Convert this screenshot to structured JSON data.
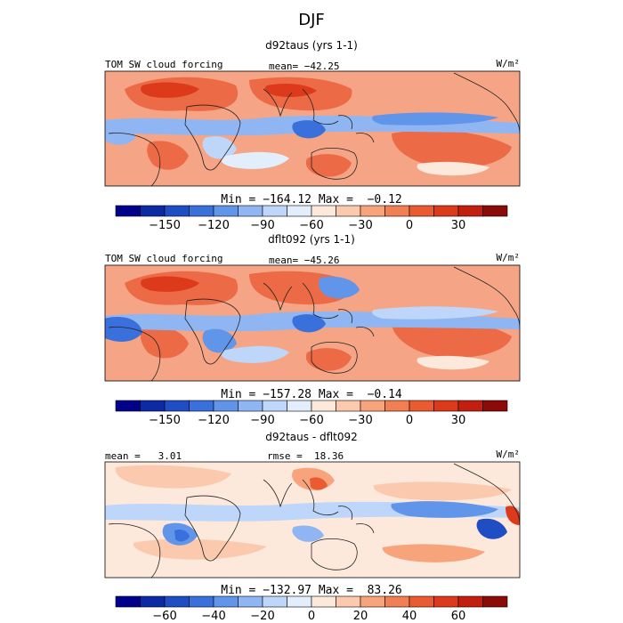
{
  "figure_title": "DJF",
  "chart_data": [
    {
      "type": "heatmap",
      "title": "d92taus (yrs 1-1)",
      "variable_label": "TOM SW cloud forcing",
      "units": "W/m²",
      "stat_left": "",
      "stat_mid": "mean= −42.25",
      "mean": -42.25,
      "min": -164.12,
      "max": -0.12,
      "range_text": "Min = −164.12 Max =  −0.12",
      "colorbar_levels": [
        -180,
        -165,
        -150,
        -135,
        -120,
        -105,
        -90,
        -75,
        -60,
        -45,
        -30,
        -15,
        0,
        15,
        30,
        45,
        60
      ],
      "colorbar_tick_values": [
        -150,
        -120,
        -90,
        -60,
        -30,
        0,
        30
      ],
      "colorbar_tick_labels": [
        "−150",
        "−120",
        "−90",
        "−60",
        "−30",
        "0",
        "30"
      ],
      "color_classes": [
        "#00008b",
        "#0d2aa5",
        "#1f4ec4",
        "#3a70dc",
        "#6195ea",
        "#8fb6f2",
        "#bdd6f9",
        "#e3eefd",
        "#fde9dc",
        "#fbc9ae",
        "#f7a47c",
        "#f17f53",
        "#ea5b32",
        "#dd3a1c",
        "#c31f10",
        "#8b0b09"
      ]
    },
    {
      "type": "heatmap",
      "title": "dflt092 (yrs 1-1)",
      "variable_label": "TOM SW cloud forcing",
      "units": "W/m²",
      "stat_left": "",
      "stat_mid": "mean= −45.26",
      "mean": -45.26,
      "min": -157.28,
      "max": -0.14,
      "range_text": "Min = −157.28 Max =  −0.14",
      "colorbar_levels": [
        -180,
        -165,
        -150,
        -135,
        -120,
        -105,
        -90,
        -75,
        -60,
        -45,
        -30,
        -15,
        0,
        15,
        30,
        45,
        60
      ],
      "colorbar_tick_values": [
        -150,
        -120,
        -90,
        -60,
        -30,
        0,
        30
      ],
      "colorbar_tick_labels": [
        "−150",
        "−120",
        "−90",
        "−60",
        "−30",
        "0",
        "30"
      ],
      "color_classes": [
        "#00008b",
        "#0d2aa5",
        "#1f4ec4",
        "#3a70dc",
        "#6195ea",
        "#8fb6f2",
        "#bdd6f9",
        "#e3eefd",
        "#fde9dc",
        "#fbc9ae",
        "#f7a47c",
        "#f17f53",
        "#ea5b32",
        "#dd3a1c",
        "#c31f10",
        "#8b0b09"
      ]
    },
    {
      "type": "heatmap",
      "title": "d92taus - dflt092",
      "variable_label": "",
      "units": "W/m²",
      "stat_left": "mean =   3.01",
      "stat_mid": "rmse =  18.36",
      "mean": 3.01,
      "rmse": 18.36,
      "min": -132.97,
      "max": 83.26,
      "range_text": "Min = −132.97 Max =  83.26",
      "colorbar_levels": [
        -80,
        -70,
        -60,
        -50,
        -40,
        -30,
        -20,
        -10,
        0,
        10,
        20,
        30,
        40,
        50,
        60,
        70,
        80
      ],
      "colorbar_tick_values": [
        -60,
        -40,
        -20,
        0,
        20,
        40,
        60
      ],
      "colorbar_tick_labels": [
        "−60",
        "−40",
        "−20",
        "0",
        "20",
        "40",
        "60"
      ],
      "color_classes": [
        "#00008b",
        "#0d2aa5",
        "#1f4ec4",
        "#3a70dc",
        "#6195ea",
        "#8fb6f2",
        "#bdd6f9",
        "#e3eefd",
        "#fde9dc",
        "#fbc9ae",
        "#f7a47c",
        "#f17f53",
        "#ea5b32",
        "#dd3a1c",
        "#c31f10",
        "#8b0b09"
      ]
    }
  ]
}
